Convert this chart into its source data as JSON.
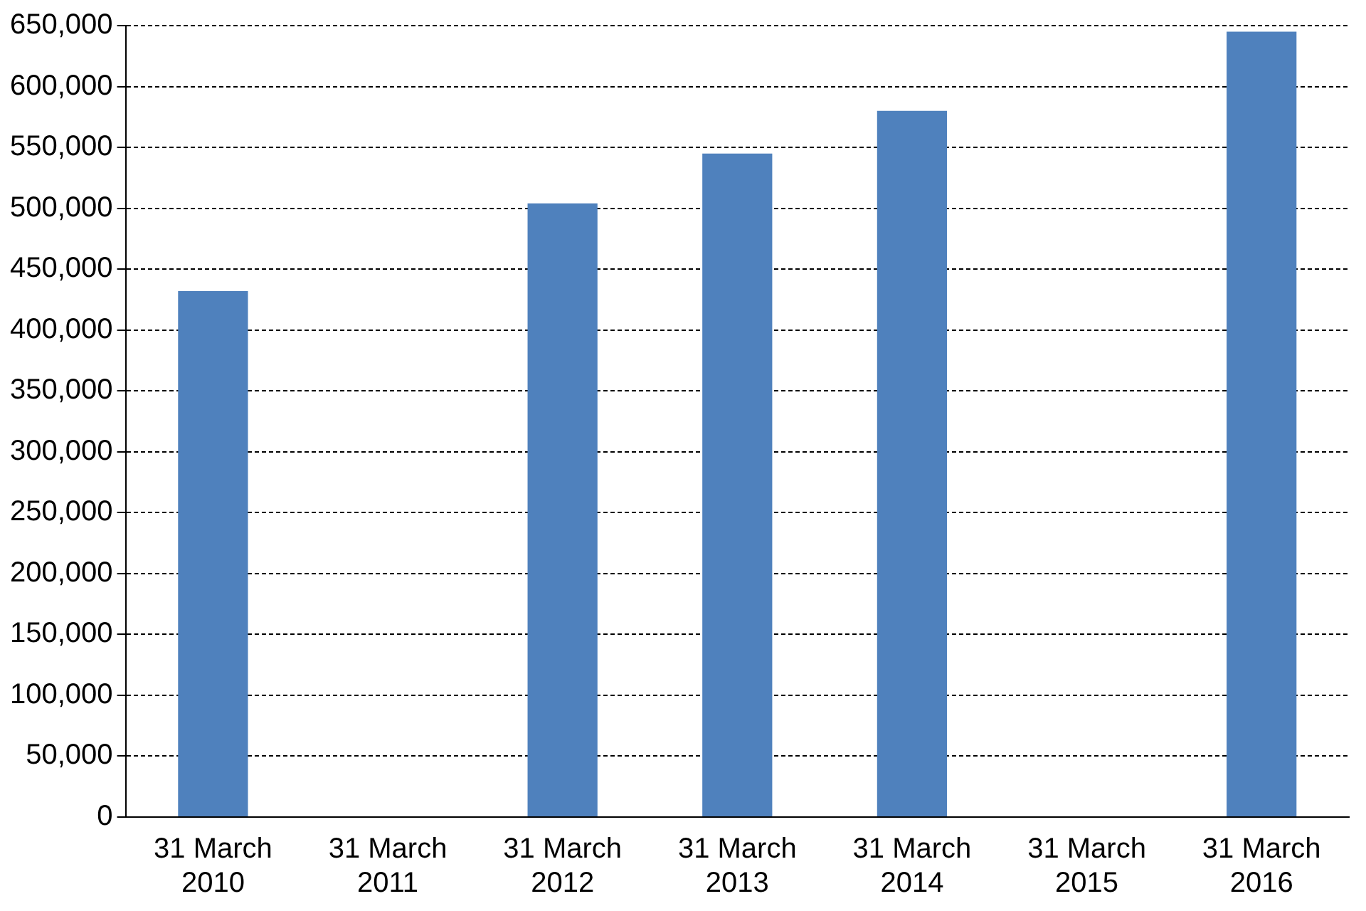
{
  "chart_data": {
    "type": "bar",
    "categories": [
      [
        "31 March",
        "2010"
      ],
      [
        "31 March",
        "2011"
      ],
      [
        "31 March",
        "2012"
      ],
      [
        "31 March",
        "2013"
      ],
      [
        "31 March",
        "2014"
      ],
      [
        "31 March",
        "2015"
      ],
      [
        "31 March",
        "2016"
      ]
    ],
    "values": [
      432000,
      null,
      504000,
      545000,
      580000,
      null,
      645000
    ],
    "color": "#4f81bd",
    "ylim": [
      0,
      650000
    ],
    "yticks": [
      0,
      {
        "value": 50000,
        "label": "50,000"
      },
      {
        "value": 100000,
        "label": "100,000"
      },
      {
        "value": 150000,
        "label": "150,000"
      },
      {
        "value": 200000,
        "label": "200,000"
      },
      {
        "value": 250000,
        "label": "250,000"
      },
      {
        "value": 300000,
        "label": "300,000"
      },
      {
        "value": 350000,
        "label": "350,000"
      },
      {
        "value": 400000,
        "label": "400,000"
      },
      {
        "value": 450000,
        "label": "450,000"
      },
      {
        "value": 500000,
        "label": "500,000"
      },
      {
        "value": 550000,
        "label": "550,000"
      },
      {
        "value": 600000,
        "label": "600,000"
      },
      {
        "value": 650000,
        "label": "650,000"
      }
    ],
    "grid": "y",
    "legend": false
  }
}
